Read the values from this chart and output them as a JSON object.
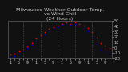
{
  "title": "Milwaukee Weather Outdoor Temp.\nvs Wind Chill\n(24 Hours)",
  "bg_color": "#111111",
  "plot_bg_color": "#111111",
  "grid_color": "#555555",
  "temp_color": "#ff0000",
  "chill_color": "#0000cc",
  "ylim": [
    -20,
    50
  ],
  "xlim": [
    -0.5,
    23.5
  ],
  "y_ticks_right": [
    50,
    40,
    30,
    20,
    10,
    0,
    -10,
    -20
  ],
  "temp_data": [
    [
      0,
      -14
    ],
    [
      1,
      -12
    ],
    [
      2,
      -8
    ],
    [
      3,
      -4
    ],
    [
      4,
      2
    ],
    [
      5,
      8
    ],
    [
      6,
      16
    ],
    [
      7,
      22
    ],
    [
      8,
      28
    ],
    [
      9,
      34
    ],
    [
      10,
      38
    ],
    [
      11,
      41
    ],
    [
      12,
      44
    ],
    [
      13,
      46
    ],
    [
      14,
      44
    ],
    [
      15,
      46
    ],
    [
      16,
      43
    ],
    [
      17,
      40
    ],
    [
      18,
      36
    ],
    [
      19,
      28
    ],
    [
      20,
      18
    ],
    [
      21,
      8
    ],
    [
      22,
      3
    ],
    [
      23,
      -2
    ]
  ],
  "chill_data": [
    [
      0,
      -18
    ],
    [
      1,
      -16
    ],
    [
      2,
      -12
    ],
    [
      3,
      -8
    ],
    [
      4,
      -2
    ],
    [
      5,
      4
    ],
    [
      6,
      12
    ],
    [
      7,
      18
    ],
    [
      8,
      24
    ],
    [
      9,
      30
    ],
    [
      10,
      35
    ],
    [
      11,
      38
    ],
    [
      12,
      42
    ],
    [
      13,
      43
    ],
    [
      14,
      42
    ],
    [
      15,
      44
    ],
    [
      16,
      40
    ],
    [
      17,
      36
    ],
    [
      18,
      30
    ],
    [
      19,
      18
    ],
    [
      20,
      6
    ],
    [
      21,
      -4
    ],
    [
      22,
      -8
    ],
    [
      23,
      -12
    ]
  ],
  "vgrid_positions": [
    3,
    7,
    11,
    15,
    19,
    23
  ],
  "x_tick_labels": [
    "1",
    "",
    "5",
    "",
    "9",
    "",
    "1",
    "",
    "5",
    "",
    "9",
    "",
    "1",
    "",
    "5",
    "",
    "9",
    "",
    "1",
    "",
    "5",
    "",
    "9",
    ""
  ],
  "marker_size": 1.5,
  "title_fontsize": 4.5,
  "tick_fontsize": 3.5,
  "title_color": "#cccccc",
  "tick_color": "#cccccc"
}
